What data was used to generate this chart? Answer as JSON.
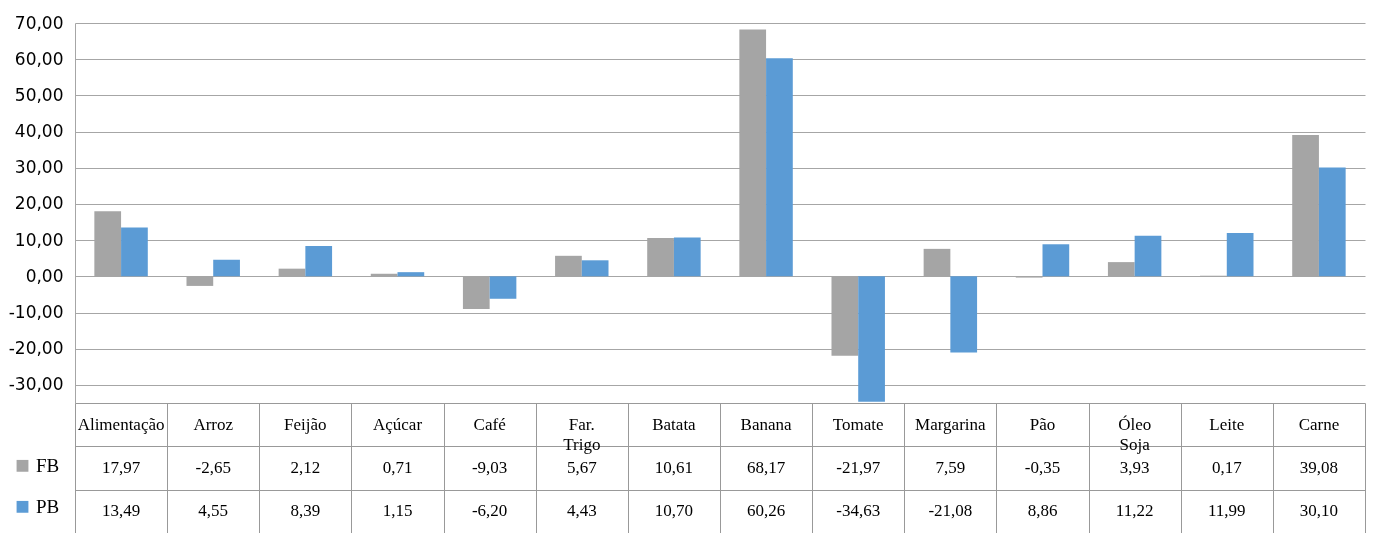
{
  "chart_data": {
    "type": "bar",
    "categories": [
      "Alimentação",
      "Arroz",
      "Feijão",
      "Açúcar",
      "Café",
      "Far. Trigo",
      "Batata",
      "Banana",
      "Tomate",
      "Margarina",
      "Pão",
      "Óleo Soja",
      "Leite",
      "Carne"
    ],
    "series": [
      {
        "name": "FB",
        "color": "#a5a5a5",
        "values": [
          17.97,
          -2.65,
          2.12,
          0.71,
          -9.03,
          5.67,
          10.61,
          68.17,
          -21.97,
          7.59,
          -0.35,
          3.93,
          0.17,
          39.08
        ],
        "value_labels": [
          "17,97",
          "-2,65",
          "2,12",
          "0,71",
          "-9,03",
          "5,67",
          "10,61",
          "68,17",
          "-21,97",
          "7,59",
          "-0,35",
          "3,93",
          "0,17",
          "39,08"
        ]
      },
      {
        "name": "PB",
        "color": "#5b9bd5",
        "values": [
          13.49,
          4.55,
          8.39,
          1.15,
          -6.2,
          4.43,
          10.7,
          60.26,
          -34.63,
          -21.08,
          8.86,
          11.22,
          11.99,
          30.1
        ],
        "value_labels": [
          "13,49",
          "4,55",
          "8,39",
          "1,15",
          "-6,20",
          "4,43",
          "10,70",
          "60,26",
          "-34,63",
          "-21,08",
          "8,86",
          "11,22",
          "11,99",
          "30,10"
        ]
      }
    ],
    "ylim": [
      -35,
      70
    ],
    "yticks": [
      {
        "value": -30,
        "label": "-30,00"
      },
      {
        "value": -20,
        "label": "-20,00"
      },
      {
        "value": -10,
        "label": "-10,00"
      },
      {
        "value": 0,
        "label": "0,00"
      },
      {
        "value": 10,
        "label": "10,00"
      },
      {
        "value": 20,
        "label": "20,00"
      },
      {
        "value": 30,
        "label": "30,00"
      },
      {
        "value": 40,
        "label": "40,00"
      },
      {
        "value": 50,
        "label": "50,00"
      },
      {
        "value": 60,
        "label": "60,00"
      },
      {
        "value": 70,
        "label": "70,00"
      }
    ],
    "grid": "y",
    "legend": "bottom left"
  }
}
